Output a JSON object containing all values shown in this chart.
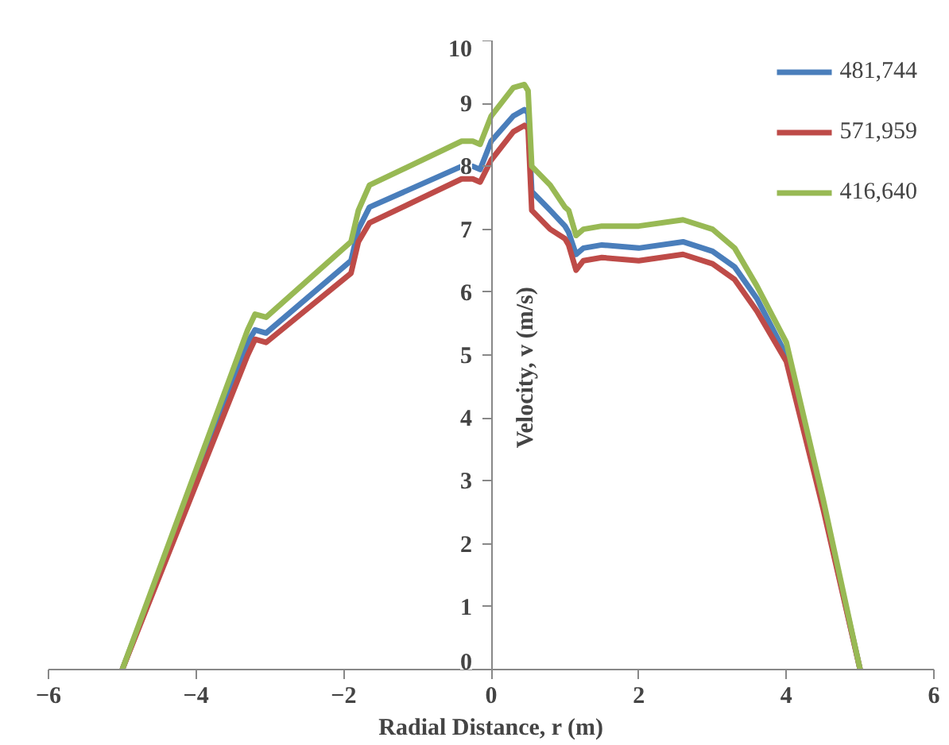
{
  "chart_data": {
    "type": "line",
    "xlabel": "Radial Distance, r (m)",
    "ylabel": "Velocity, v (m/s)",
    "x": [
      -5,
      -3.3,
      -3.2,
      -3.05,
      -1.9,
      -1.8,
      -1.65,
      -0.4,
      -0.25,
      -0.15,
      0,
      0.3,
      0.45,
      0.5,
      0.55,
      0.8,
      1.0,
      1.05,
      1.15,
      1.25,
      1.5,
      2,
      2.6,
      3.0,
      3.3,
      3.6,
      4,
      4.5,
      5
    ],
    "series": [
      {
        "name": "481,744",
        "color": "#4a7ebb",
        "values": [
          0,
          5.2,
          5.4,
          5.35,
          6.5,
          7.0,
          7.35,
          8.0,
          8.0,
          7.95,
          8.4,
          8.8,
          8.9,
          8.85,
          7.6,
          7.3,
          7.05,
          6.95,
          6.6,
          6.7,
          6.75,
          6.7,
          6.8,
          6.65,
          6.4,
          5.9,
          5.0,
          2.6,
          0
        ]
      },
      {
        "name": "571,959",
        "color": "#be4b48",
        "values": [
          0,
          5.0,
          5.25,
          5.2,
          6.3,
          6.8,
          7.1,
          7.8,
          7.8,
          7.75,
          8.1,
          8.55,
          8.65,
          8.6,
          7.3,
          7.0,
          6.85,
          6.75,
          6.35,
          6.5,
          6.55,
          6.5,
          6.6,
          6.45,
          6.2,
          5.7,
          4.9,
          2.55,
          0
        ]
      },
      {
        "name": "416,640",
        "color": "#98b954",
        "values": [
          0,
          5.4,
          5.65,
          5.6,
          6.8,
          7.3,
          7.7,
          8.4,
          8.4,
          8.35,
          8.8,
          9.25,
          9.3,
          9.2,
          8.0,
          7.7,
          7.35,
          7.3,
          6.9,
          7.0,
          7.05,
          7.05,
          7.15,
          7.0,
          6.7,
          6.1,
          5.2,
          2.7,
          0
        ]
      }
    ],
    "xlim": [
      -6,
      6
    ],
    "xticks": [
      -6,
      -4,
      -2,
      0,
      2,
      4,
      6
    ],
    "ylim": [
      0,
      10
    ],
    "yticks": [
      0,
      1,
      2,
      3,
      4,
      5,
      6,
      7,
      8,
      9,
      10
    ],
    "grid": false,
    "legend": "top right"
  }
}
